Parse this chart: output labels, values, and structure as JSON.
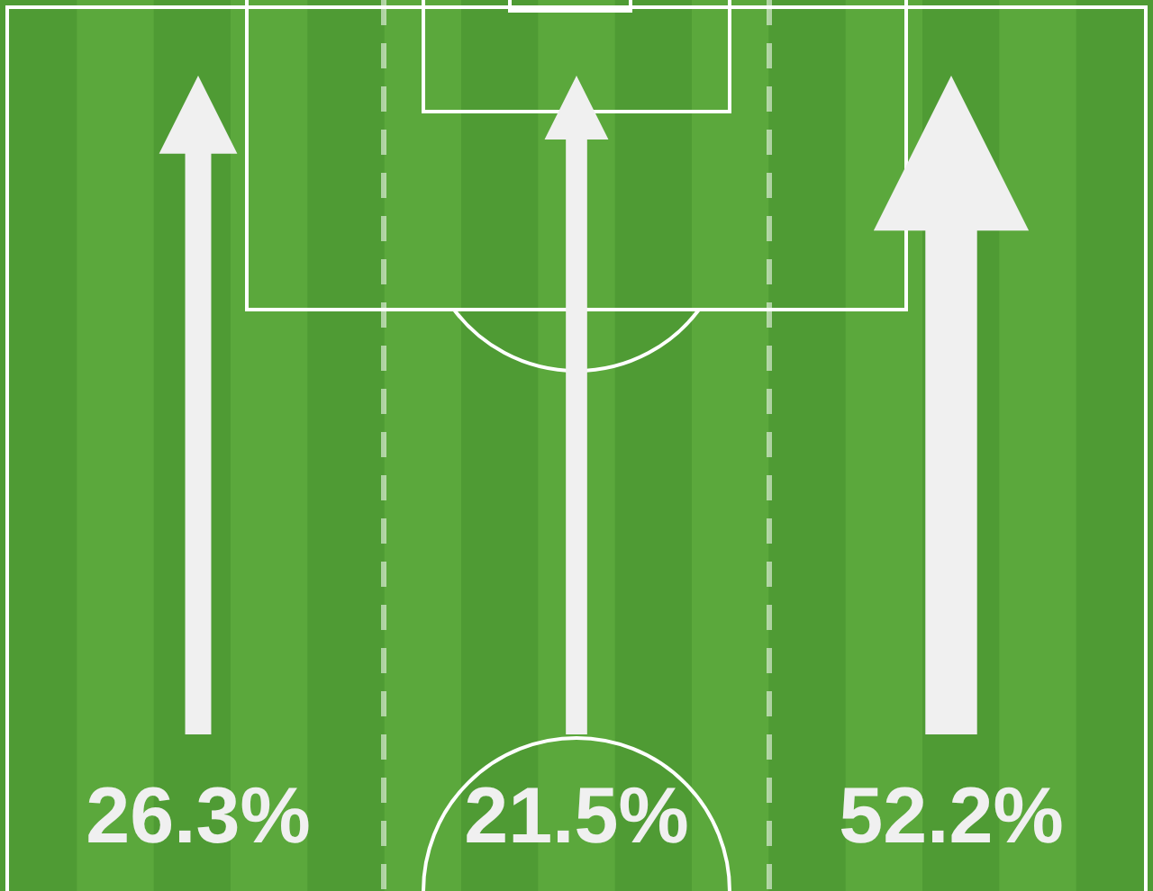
{
  "chart_data": {
    "type": "other",
    "categories": [
      null,
      null,
      null
    ],
    "values": [
      26.3,
      21.5,
      52.2
    ],
    "value_labels": [
      "26.3%",
      "21.5%",
      "52.2%"
    ],
    "color": "#f0f0f0"
  }
}
